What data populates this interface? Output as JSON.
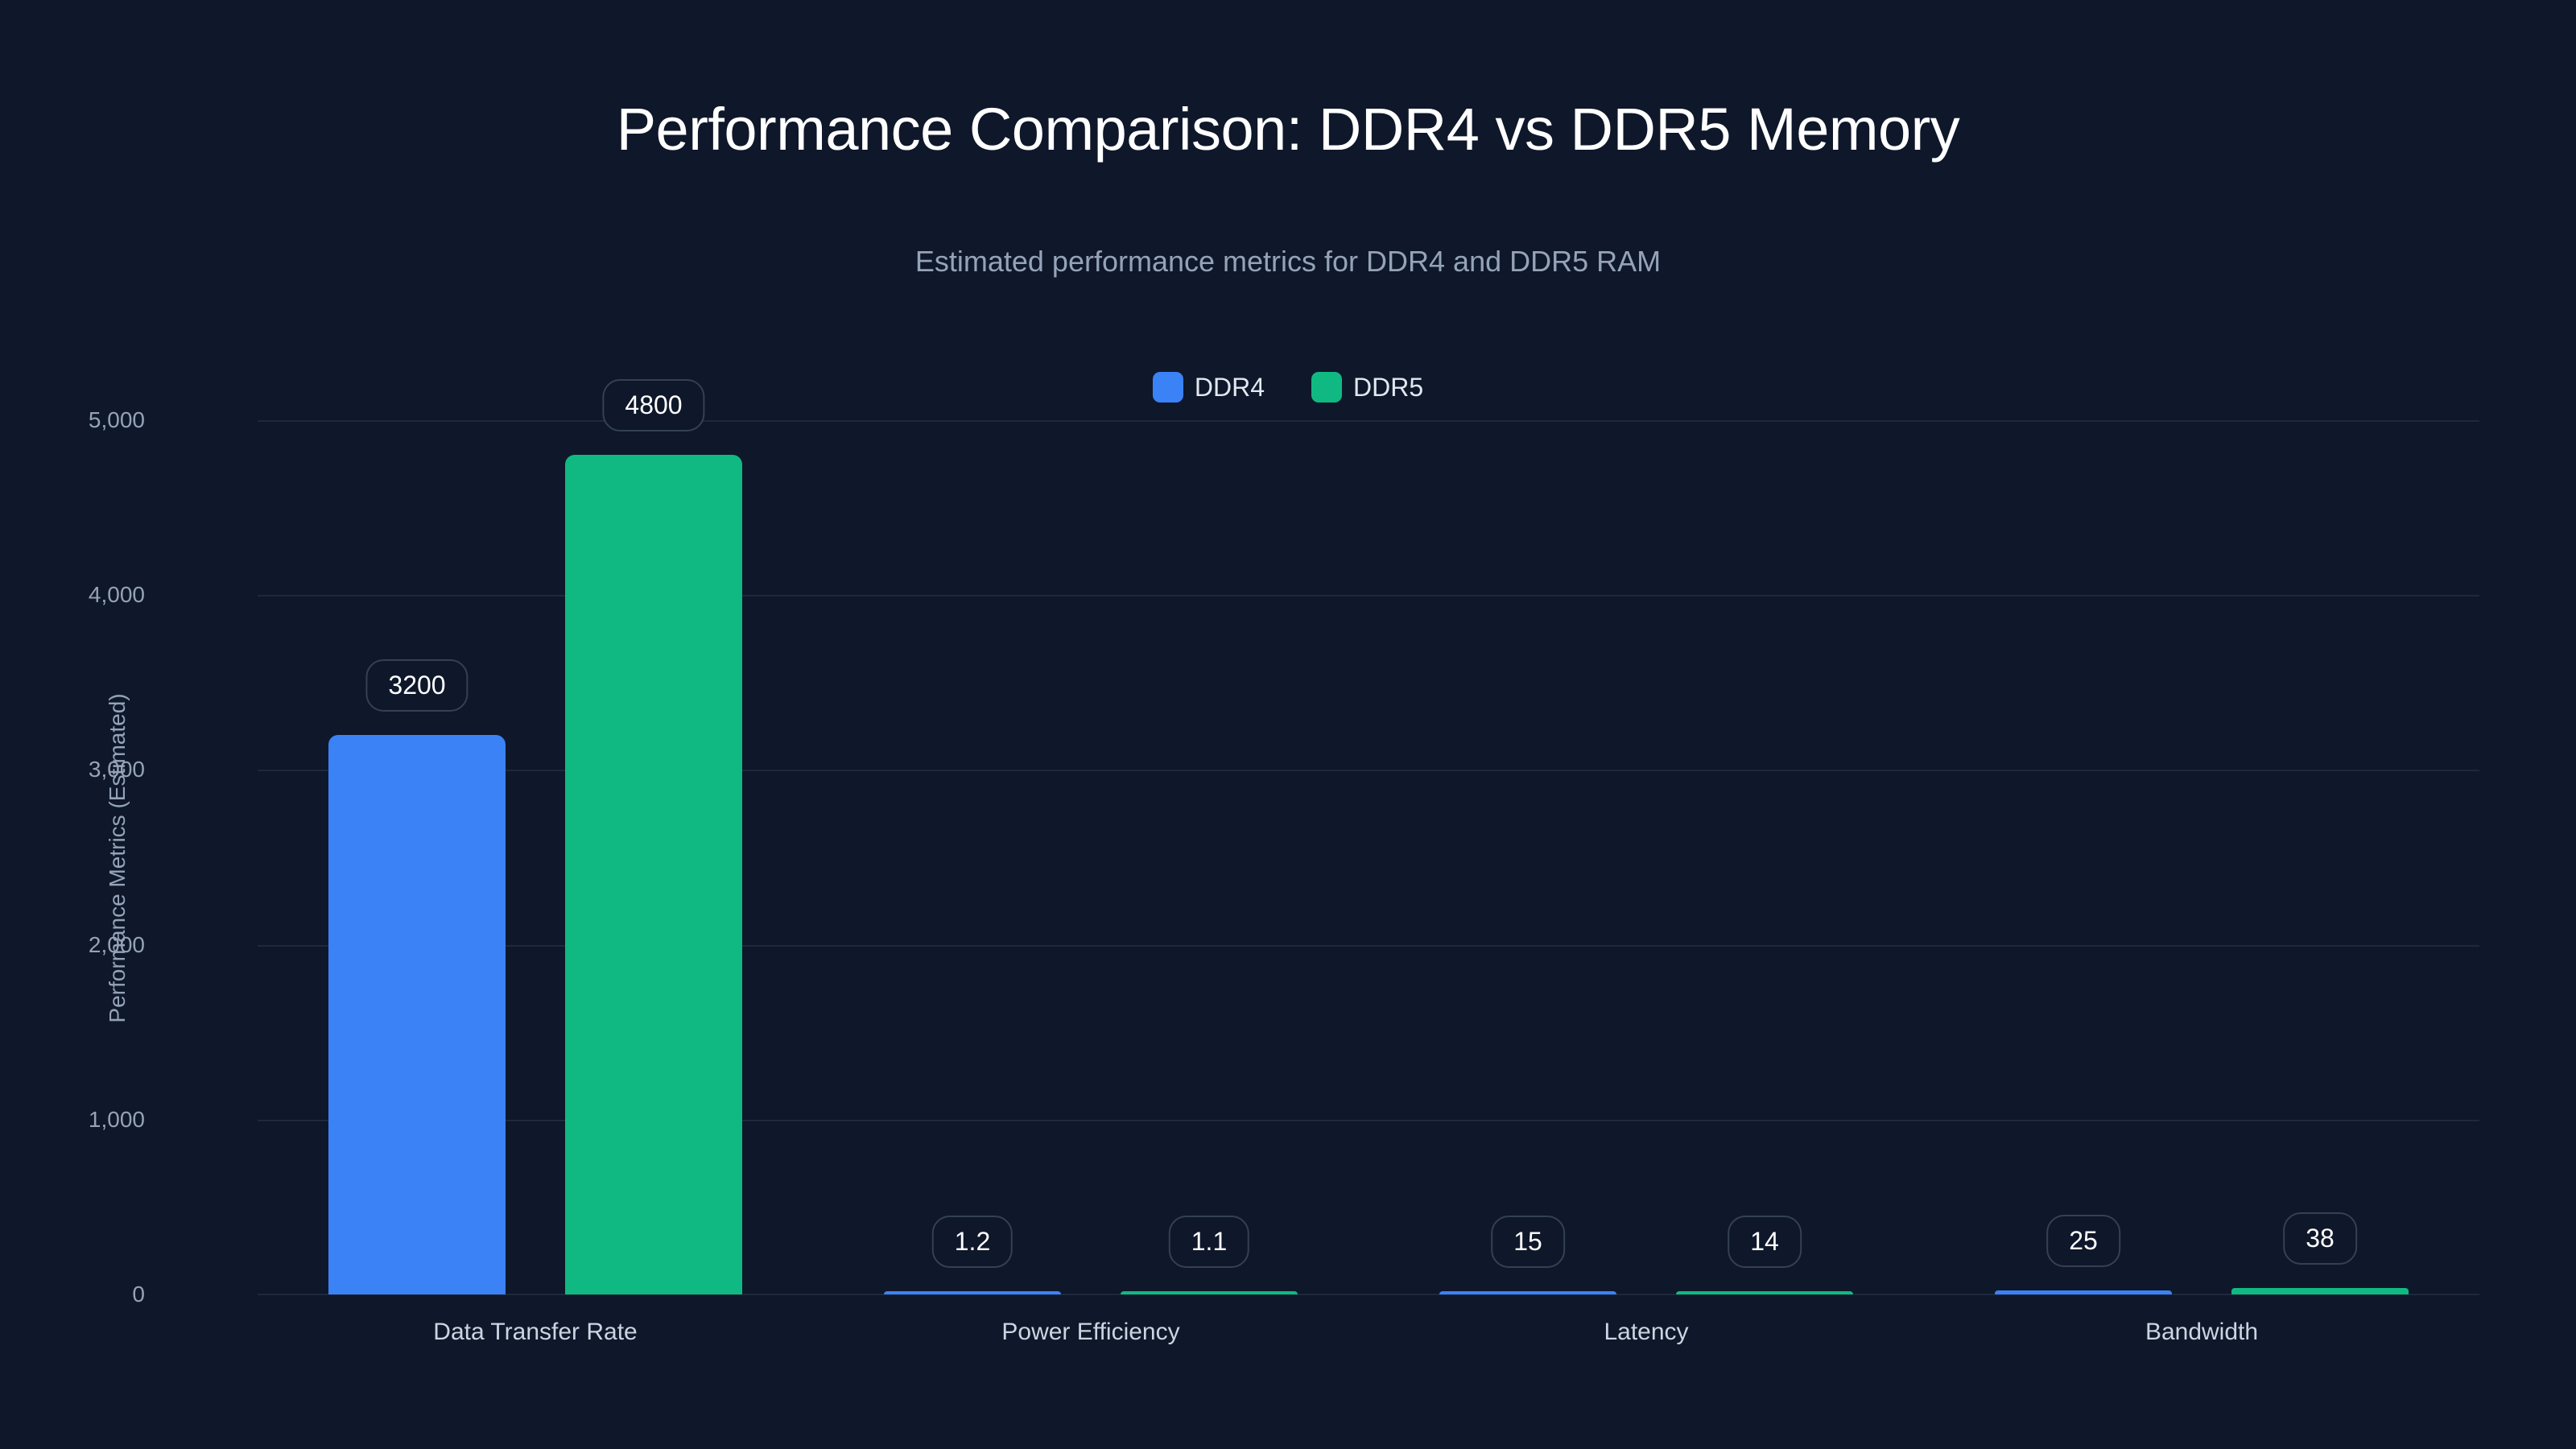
{
  "title": "Performance Comparison: DDR4 vs DDR5 Memory",
  "subtitle": "Estimated performance metrics for DDR4 and DDR5 RAM",
  "colors": {
    "background": "#0f172a",
    "ddr4": "#3b82f6",
    "ddr5": "#10b981",
    "grid": "#1e293b"
  },
  "legend": [
    {
      "label": "DDR4",
      "color": "#3b82f6"
    },
    {
      "label": "DDR5",
      "color": "#10b981"
    }
  ],
  "y_axis": {
    "label": "Performance Metrics (Estimated)",
    "ticks": [
      "0",
      "1,000",
      "2,000",
      "3,000",
      "4,000",
      "5,000"
    ]
  },
  "x_axis": {
    "categories": [
      "Data Transfer Rate",
      "Power Efficiency",
      "Latency",
      "Bandwidth"
    ]
  },
  "chart_data": {
    "type": "bar",
    "title": "Performance Comparison: DDR4 vs DDR5 Memory",
    "subtitle": "Estimated performance metrics for DDR4 and DDR5 RAM",
    "categories": [
      "Data Transfer Rate",
      "Power Efficiency",
      "Latency",
      "Bandwidth"
    ],
    "series": [
      {
        "name": "DDR4",
        "color": "#3b82f6",
        "values": [
          3200,
          1.2,
          15,
          25
        ],
        "labels": [
          "3200",
          "1.2",
          "15",
          "25"
        ]
      },
      {
        "name": "DDR5",
        "color": "#10b981",
        "values": [
          4800,
          1.1,
          14,
          38
        ],
        "labels": [
          "4800",
          "1.1",
          "14",
          "38"
        ]
      }
    ],
    "xlabel": "",
    "ylabel": "Performance Metrics (Estimated)",
    "ylim": [
      0,
      5000
    ],
    "yticks": [
      0,
      1000,
      2000,
      3000,
      4000,
      5000
    ],
    "grid": true,
    "legend_position": "top-center"
  }
}
